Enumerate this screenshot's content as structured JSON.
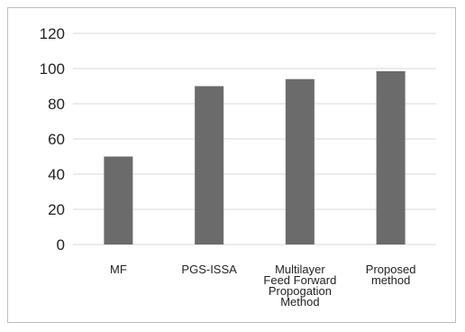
{
  "chart_data": {
    "type": "bar",
    "title": "",
    "xlabel": "",
    "ylabel": "",
    "categories": [
      [
        "MF"
      ],
      [
        "PGS-ISSA"
      ],
      [
        "Multilayer",
        "Feed Forward",
        "Propogation",
        "Method"
      ],
      [
        "Proposed",
        "method"
      ]
    ],
    "values": [
      50,
      90,
      94,
      98.5
    ],
    "ylim": [
      0,
      120
    ],
    "yticks": [
      0,
      20,
      40,
      60,
      80,
      100,
      120
    ],
    "grid": true,
    "legend": "none",
    "colors": {
      "bar": "#6b6b6b",
      "grid": "#d9d9d9",
      "frame": "#bdbdbd",
      "text": "#222222"
    }
  }
}
